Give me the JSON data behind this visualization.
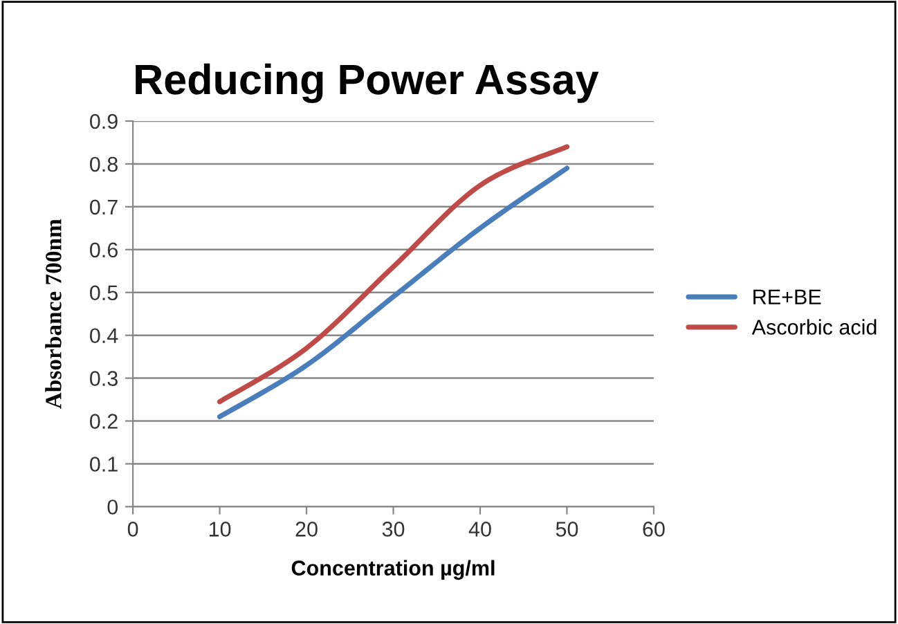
{
  "chart_data": {
    "type": "line",
    "title": "Reducing Power Assay",
    "xlabel": "Concentration µg/ml",
    "ylabel": "Absorbance 700nm",
    "x": [
      10,
      20,
      30,
      40,
      50
    ],
    "series": [
      {
        "name": "RE+BE",
        "color": "#4a7ebb",
        "values": [
          0.21,
          0.33,
          0.49,
          0.65,
          0.79
        ]
      },
      {
        "name": "Ascorbic acid",
        "color": "#be4b48",
        "values": [
          0.245,
          0.37,
          0.56,
          0.75,
          0.84
        ]
      }
    ],
    "xlim": [
      0,
      60
    ],
    "xticks": [
      0,
      10,
      20,
      30,
      40,
      50,
      60
    ],
    "ylim": [
      0,
      0.9
    ],
    "yticks": [
      0,
      0.1,
      0.2,
      0.3,
      0.4,
      0.5,
      0.6,
      0.7,
      0.8,
      0.9
    ],
    "grid": "y",
    "legend": "right",
    "marker": "none",
    "line_style": "solid"
  }
}
